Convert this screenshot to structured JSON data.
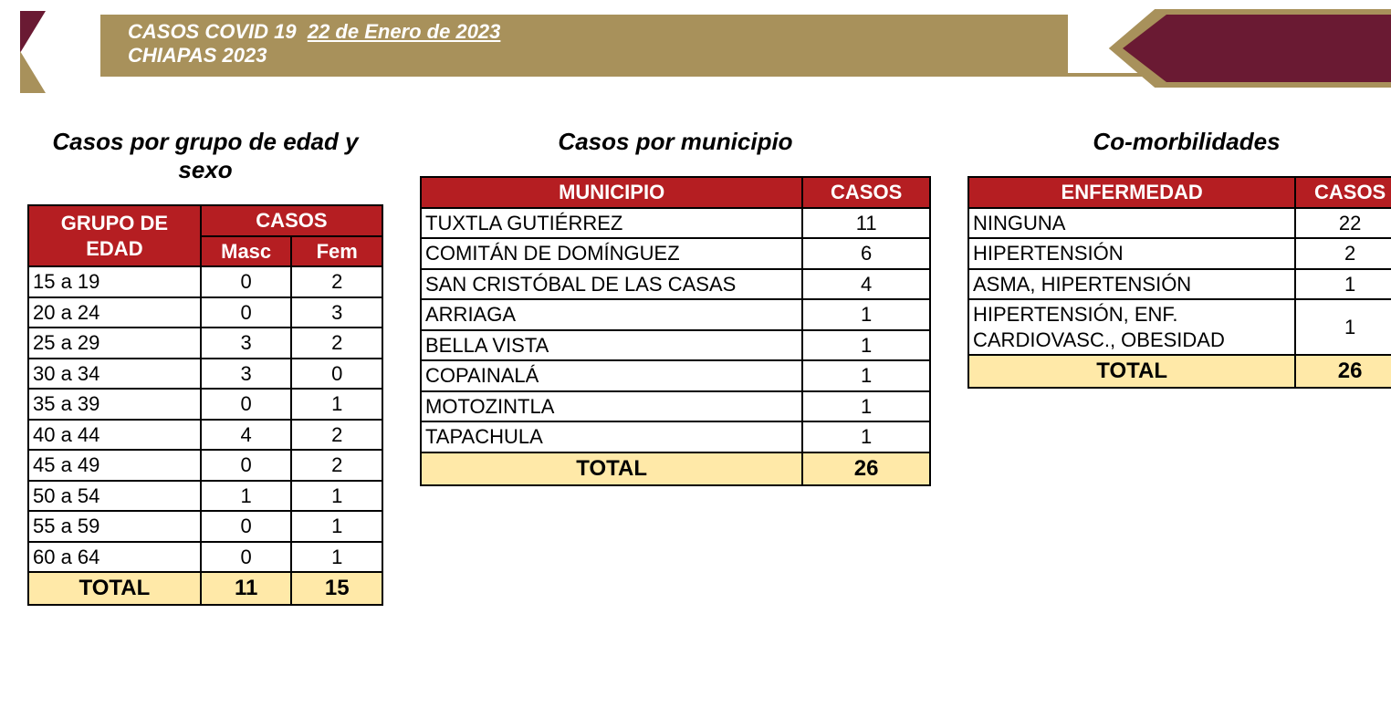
{
  "colors": {
    "gold": "#a8915b",
    "maroon": "#6a1a33",
    "header_red": "#b51e22",
    "total_bg": "#ffe9a8",
    "border": "#000000",
    "white": "#ffffff"
  },
  "header": {
    "prefix": "CASOS COVID 19",
    "date": "22 de Enero de 2023",
    "sub": "CHIAPAS 2023"
  },
  "age": {
    "title": "Casos por grupo de edad y sexo",
    "th_group": "GRUPO DE EDAD",
    "th_cases": "CASOS",
    "th_masc": "Masc",
    "th_fem": "Fem",
    "rows": [
      {
        "g": "15 a 19",
        "m": "0",
        "f": "2"
      },
      {
        "g": "20 a 24",
        "m": "0",
        "f": "3"
      },
      {
        "g": "25 a 29",
        "m": "3",
        "f": "2"
      },
      {
        "g": "30 a 34",
        "m": "3",
        "f": "0"
      },
      {
        "g": "35 a 39",
        "m": "0",
        "f": "1"
      },
      {
        "g": "40 a 44",
        "m": "4",
        "f": "2"
      },
      {
        "g": "45 a 49",
        "m": "0",
        "f": "2"
      },
      {
        "g": "50 a 54",
        "m": "1",
        "f": "1"
      },
      {
        "g": "55 a 59",
        "m": "0",
        "f": "1"
      },
      {
        "g": "60 a 64",
        "m": "0",
        "f": "1"
      }
    ],
    "total_label": "TOTAL",
    "total_m": "11",
    "total_f": "15"
  },
  "muni": {
    "title": "Casos por municipio",
    "th_muni": "MUNICIPIO",
    "th_cases": "CASOS",
    "rows": [
      {
        "n": "TUXTLA GUTIÉRREZ",
        "c": "11"
      },
      {
        "n": "COMITÁN DE DOMÍNGUEZ",
        "c": "6"
      },
      {
        "n": "SAN CRISTÓBAL DE LAS CASAS",
        "c": "4"
      },
      {
        "n": "ARRIAGA",
        "c": "1"
      },
      {
        "n": "BELLA VISTA",
        "c": "1"
      },
      {
        "n": "COPAINALÁ",
        "c": "1"
      },
      {
        "n": "MOTOZINTLA",
        "c": "1"
      },
      {
        "n": "TAPACHULA",
        "c": "1"
      }
    ],
    "total_label": "TOTAL",
    "total": "26"
  },
  "com": {
    "title": "Co-morbilidades",
    "th_enf": "ENFERMEDAD",
    "th_cases": "CASOS",
    "rows": [
      {
        "n": "NINGUNA",
        "c": "22"
      },
      {
        "n": "HIPERTENSIÓN",
        "c": "2"
      },
      {
        "n": "ASMA, HIPERTENSIÓN",
        "c": "1"
      },
      {
        "n": "HIPERTENSIÓN, ENF. CARDIOVASC., OBESIDAD",
        "c": "1"
      }
    ],
    "total_label": "TOTAL",
    "total": "26"
  }
}
